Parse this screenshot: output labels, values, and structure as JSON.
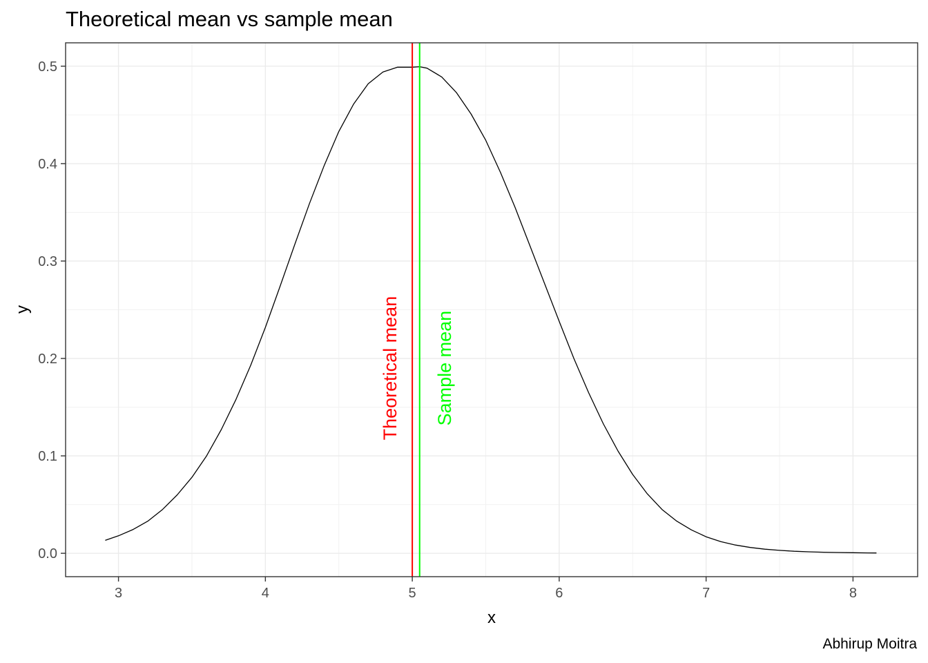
{
  "chart_data": {
    "type": "line",
    "title": "Theoretical mean vs sample mean",
    "xlabel": "x",
    "ylabel": "y",
    "caption": "Abhirup Moitra",
    "xlim": [
      2.64,
      8.44
    ],
    "ylim": [
      -0.024,
      0.524
    ],
    "x_ticks": [
      3,
      4,
      5,
      6,
      7,
      8
    ],
    "y_ticks": [
      0.0,
      0.1,
      0.2,
      0.3,
      0.4,
      0.5
    ],
    "y_tick_labels": [
      "0.0",
      "0.1",
      "0.2",
      "0.3",
      "0.4",
      "0.5"
    ],
    "grid": true,
    "series": [
      {
        "color": "#000000",
        "x": [
          2.91,
          3.0,
          3.1,
          3.2,
          3.3,
          3.4,
          3.5,
          3.6,
          3.7,
          3.8,
          3.9,
          4.0,
          4.1,
          4.2,
          4.3,
          4.4,
          4.5,
          4.6,
          4.7,
          4.8,
          4.9,
          5.0,
          5.05,
          5.1,
          5.2,
          5.3,
          5.4,
          5.5,
          5.6,
          5.7,
          5.8,
          5.9,
          6.0,
          6.1,
          6.2,
          6.3,
          6.4,
          6.5,
          6.6,
          6.7,
          6.8,
          6.9,
          7.0,
          7.1,
          7.2,
          7.3,
          7.4,
          7.5,
          7.6,
          7.7,
          7.8,
          7.9,
          8.0,
          8.1,
          8.16
        ],
        "y": [
          0.0133,
          0.018,
          0.0245,
          0.033,
          0.045,
          0.06,
          0.078,
          0.1,
          0.127,
          0.158,
          0.193,
          0.232,
          0.274,
          0.317,
          0.359,
          0.398,
          0.433,
          0.461,
          0.482,
          0.494,
          0.499,
          0.499,
          0.4995,
          0.498,
          0.489,
          0.473,
          0.451,
          0.424,
          0.391,
          0.355,
          0.316,
          0.277,
          0.238,
          0.2,
          0.165,
          0.133,
          0.105,
          0.081,
          0.061,
          0.045,
          0.033,
          0.024,
          0.017,
          0.012,
          0.0085,
          0.006,
          0.0042,
          0.003,
          0.0021,
          0.0015,
          0.0011,
          0.0008,
          0.0006,
          0.0004,
          0.0003
        ]
      }
    ],
    "vlines": [
      {
        "x": 5.0,
        "color": "#ff0000",
        "label": "Theoretical mean",
        "label_x": 4.85,
        "label_y": 0.19
      },
      {
        "x": 5.05,
        "color": "#00ff00",
        "label": "Sample mean",
        "label_x": 5.22,
        "label_y": 0.19
      }
    ]
  }
}
